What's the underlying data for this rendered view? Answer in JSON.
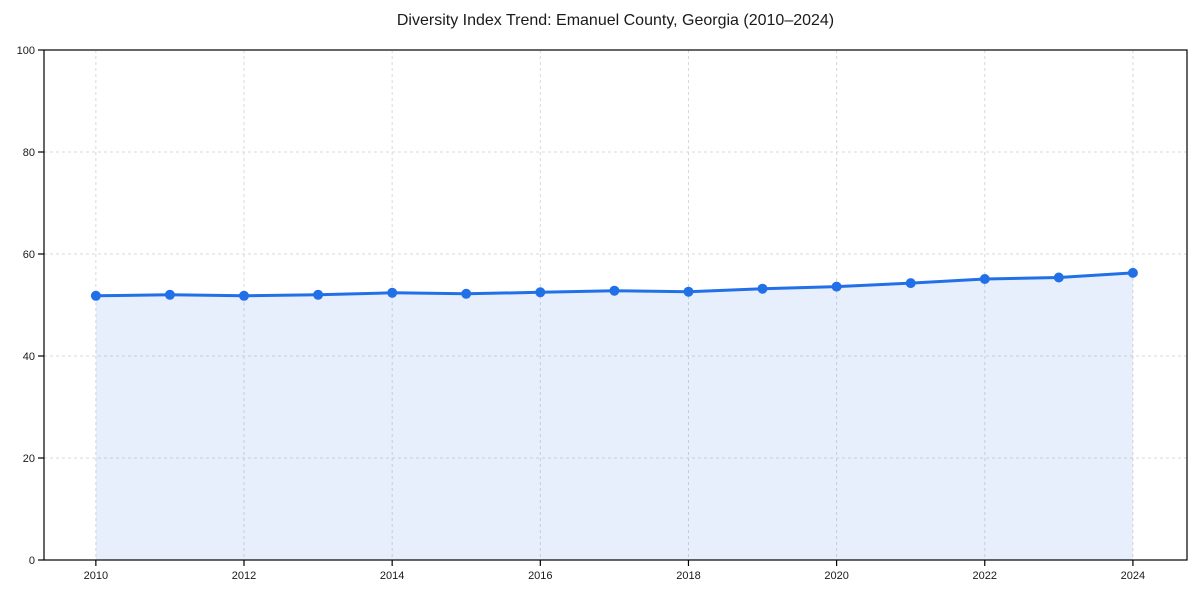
{
  "chart_data": {
    "type": "area",
    "title": "Diversity Index Trend: Emanuel County, Georgia (2010–2024)",
    "x": [
      2010,
      2011,
      2012,
      2013,
      2014,
      2015,
      2016,
      2017,
      2018,
      2019,
      2020,
      2021,
      2022,
      2023,
      2024
    ],
    "series": [
      {
        "name": "Diversity Index",
        "values": [
          51.8,
          52.0,
          51.8,
          52.0,
          52.4,
          52.2,
          52.5,
          52.8,
          52.6,
          53.2,
          53.6,
          54.3,
          55.1,
          55.4,
          56.3
        ]
      }
    ],
    "xlabel": "",
    "ylabel": "",
    "xlim": [
      2009.3,
      2024.73
    ],
    "ylim": [
      0,
      100
    ],
    "xticks": [
      2010,
      2012,
      2014,
      2016,
      2018,
      2020,
      2022,
      2024
    ],
    "yticks": [
      0,
      20,
      40,
      60,
      80,
      100
    ],
    "grid": true,
    "grid_style": "dashed",
    "legend": false,
    "colors": {
      "line": "#2270e8",
      "fill": "#2270e8",
      "grid": "#d8d8d8",
      "axis": "#000000",
      "text": "#1a1a1a",
      "background": "#ffffff"
    },
    "fill_opacity": 0.11,
    "marker": "circle",
    "marker_radius": 5,
    "line_width": 3
  }
}
